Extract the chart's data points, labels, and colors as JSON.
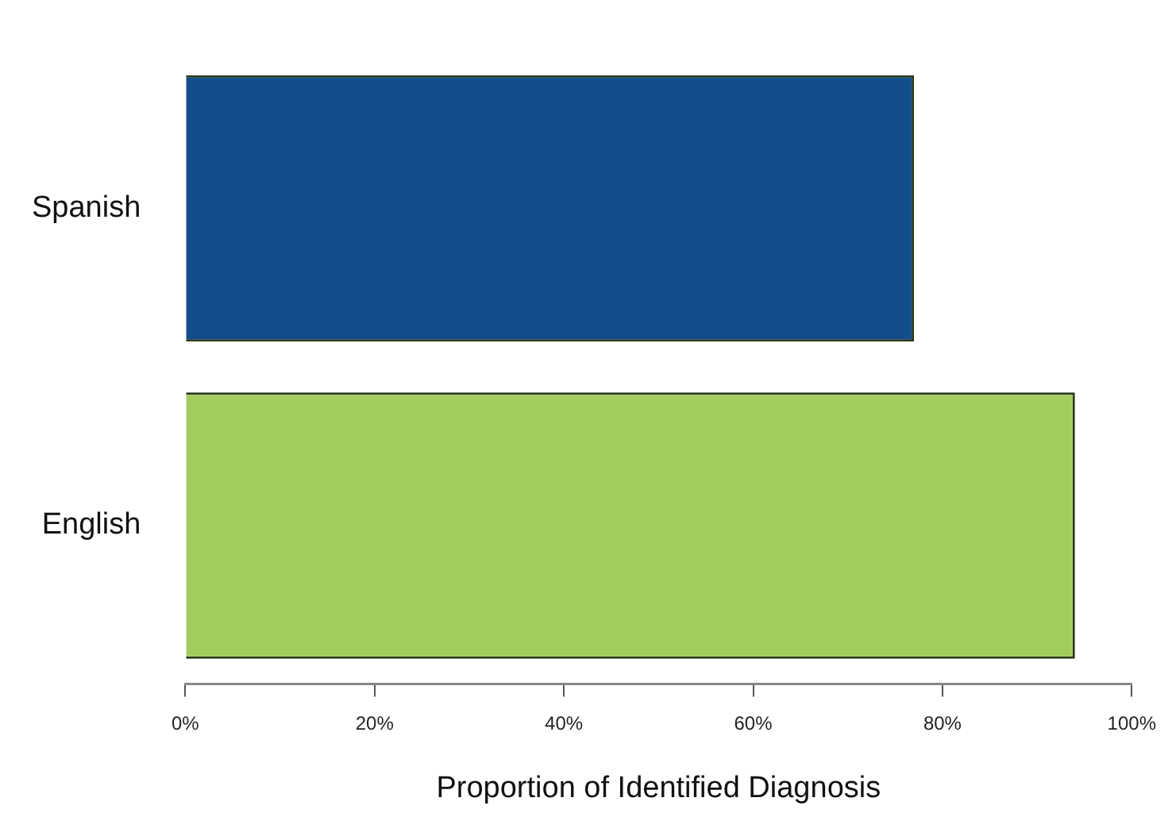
{
  "chart_data": {
    "type": "bar",
    "orientation": "horizontal",
    "xlabel": "Proportion of Identified Diagnosis",
    "categories": [
      "Spanish",
      "English"
    ],
    "values": [
      77,
      94
    ],
    "colors": [
      "#124e8a",
      "#a3cc5e"
    ],
    "xlim": [
      0,
      100
    ],
    "xticks": [
      {
        "value": 0,
        "label": "0%"
      },
      {
        "value": 20,
        "label": "20%"
      },
      {
        "value": 40,
        "label": "40%"
      },
      {
        "value": 60,
        "label": "60%"
      },
      {
        "value": 80,
        "label": "80%"
      },
      {
        "value": 100,
        "label": "100%"
      }
    ],
    "grid": false,
    "legend": false
  }
}
